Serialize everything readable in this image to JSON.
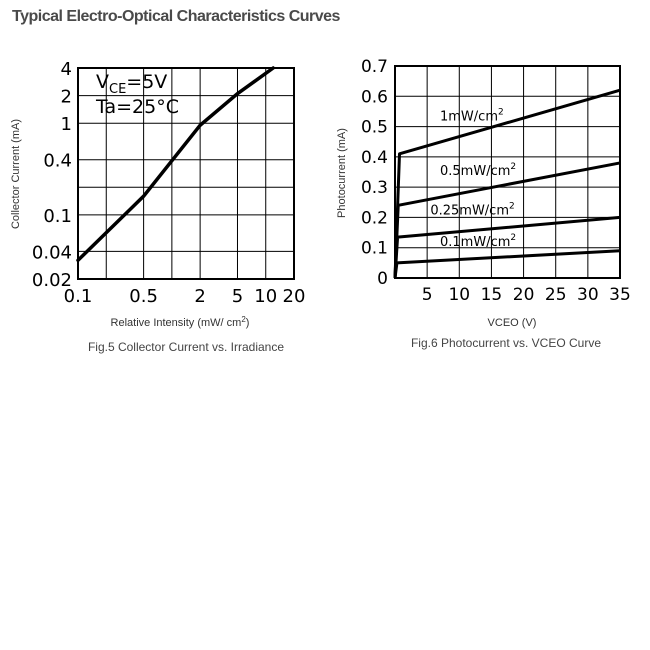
{
  "page": {
    "title": "Typical Electro-Optical Characteristics Curves"
  },
  "chart_data": [
    {
      "type": "line",
      "xscale": "log",
      "yscale": "log",
      "xlim": [
        0.1,
        20
      ],
      "ylim": [
        0.02,
        4
      ],
      "xticks": [
        {
          "value": 0.1,
          "label": "0.1"
        },
        {
          "value": 0.5,
          "label": "0.5"
        },
        {
          "value": 2,
          "label": "2"
        },
        {
          "value": 5,
          "label": "5"
        },
        {
          "value": 10,
          "label": "10"
        },
        {
          "value": 20,
          "label": "20"
        }
      ],
      "yticks": [
        {
          "value": 4,
          "label": "4"
        },
        {
          "value": 2,
          "label": "2"
        },
        {
          "value": 1,
          "label": "1"
        },
        {
          "value": 0.4,
          "label": "0.4"
        },
        {
          "value": 0.1,
          "label": "0.1"
        },
        {
          "value": 0.04,
          "label": "0.04"
        },
        {
          "value": 0.02,
          "label": "0.02"
        }
      ],
      "xgrid": [
        0.1,
        0.2,
        0.5,
        1,
        2,
        5,
        10,
        20
      ],
      "ygrid": [
        0.02,
        0.04,
        0.1,
        0.2,
        0.4,
        1,
        2,
        4
      ],
      "grid": true,
      "ylabel": "Collector Current (mA)",
      "xlabel": "Relative Intensity (mW/ cm",
      "xlabel_sup": "2",
      "xlabel_end": ")",
      "caption": "Fig.5 Collector Current vs. Irradiance",
      "annotation": {
        "line1_main": "V",
        "line1_sub": "CE",
        "line1_rest": "=5V",
        "line2": "Ta=25°C"
      },
      "series": [
        {
          "x": [
            0.1,
            0.5,
            2,
            5,
            12
          ],
          "y": [
            0.032,
            0.16,
            0.95,
            2.1,
            4.5
          ]
        }
      ]
    },
    {
      "type": "line",
      "xlim": [
        0,
        35
      ],
      "ylim": [
        0,
        0.7
      ],
      "xticks": [
        {
          "value": 5,
          "label": "5"
        },
        {
          "value": 10,
          "label": "10"
        },
        {
          "value": 15,
          "label": "15"
        },
        {
          "value": 20,
          "label": "20"
        },
        {
          "value": 25,
          "label": "25"
        },
        {
          "value": 30,
          "label": "30"
        },
        {
          "value": 35,
          "label": "35"
        }
      ],
      "yticks": [
        {
          "value": 0,
          "label": "0"
        },
        {
          "value": 0.1,
          "label": "0.1"
        },
        {
          "value": 0.2,
          "label": "0.2"
        },
        {
          "value": 0.3,
          "label": "0.3"
        },
        {
          "value": 0.4,
          "label": "0.4"
        },
        {
          "value": 0.5,
          "label": "0.5"
        },
        {
          "value": 0.6,
          "label": "0.6"
        },
        {
          "value": 0.7,
          "label": "0.7"
        }
      ],
      "grid": true,
      "ylabel": "Photocurrent (mA)",
      "xlabel": "VCEO (V)",
      "caption": "Fig.6  Photocurrent  vs. VCEO Curve",
      "series": [
        {
          "name": "1mW/cm",
          "name_sup": "2",
          "label_at": [
            7,
            0.52
          ],
          "x": [
            0,
            0.7,
            35
          ],
          "y": [
            0,
            0.41,
            0.62
          ]
        },
        {
          "name": "0.5mW/cm",
          "name_sup": "2",
          "label_at": [
            7,
            0.34
          ],
          "x": [
            0,
            0.5,
            35
          ],
          "y": [
            0,
            0.24,
            0.38
          ]
        },
        {
          "name": "0.25mW/cm",
          "name_sup": "2",
          "label_at": [
            5.5,
            0.21
          ],
          "x": [
            0,
            0.4,
            35
          ],
          "y": [
            0,
            0.135,
            0.2
          ]
        },
        {
          "name": "0.1mW/cm",
          "name_sup": "2",
          "label_at": [
            7,
            0.105
          ],
          "x": [
            0,
            0.3,
            35
          ],
          "y": [
            0,
            0.05,
            0.09
          ]
        }
      ]
    }
  ]
}
